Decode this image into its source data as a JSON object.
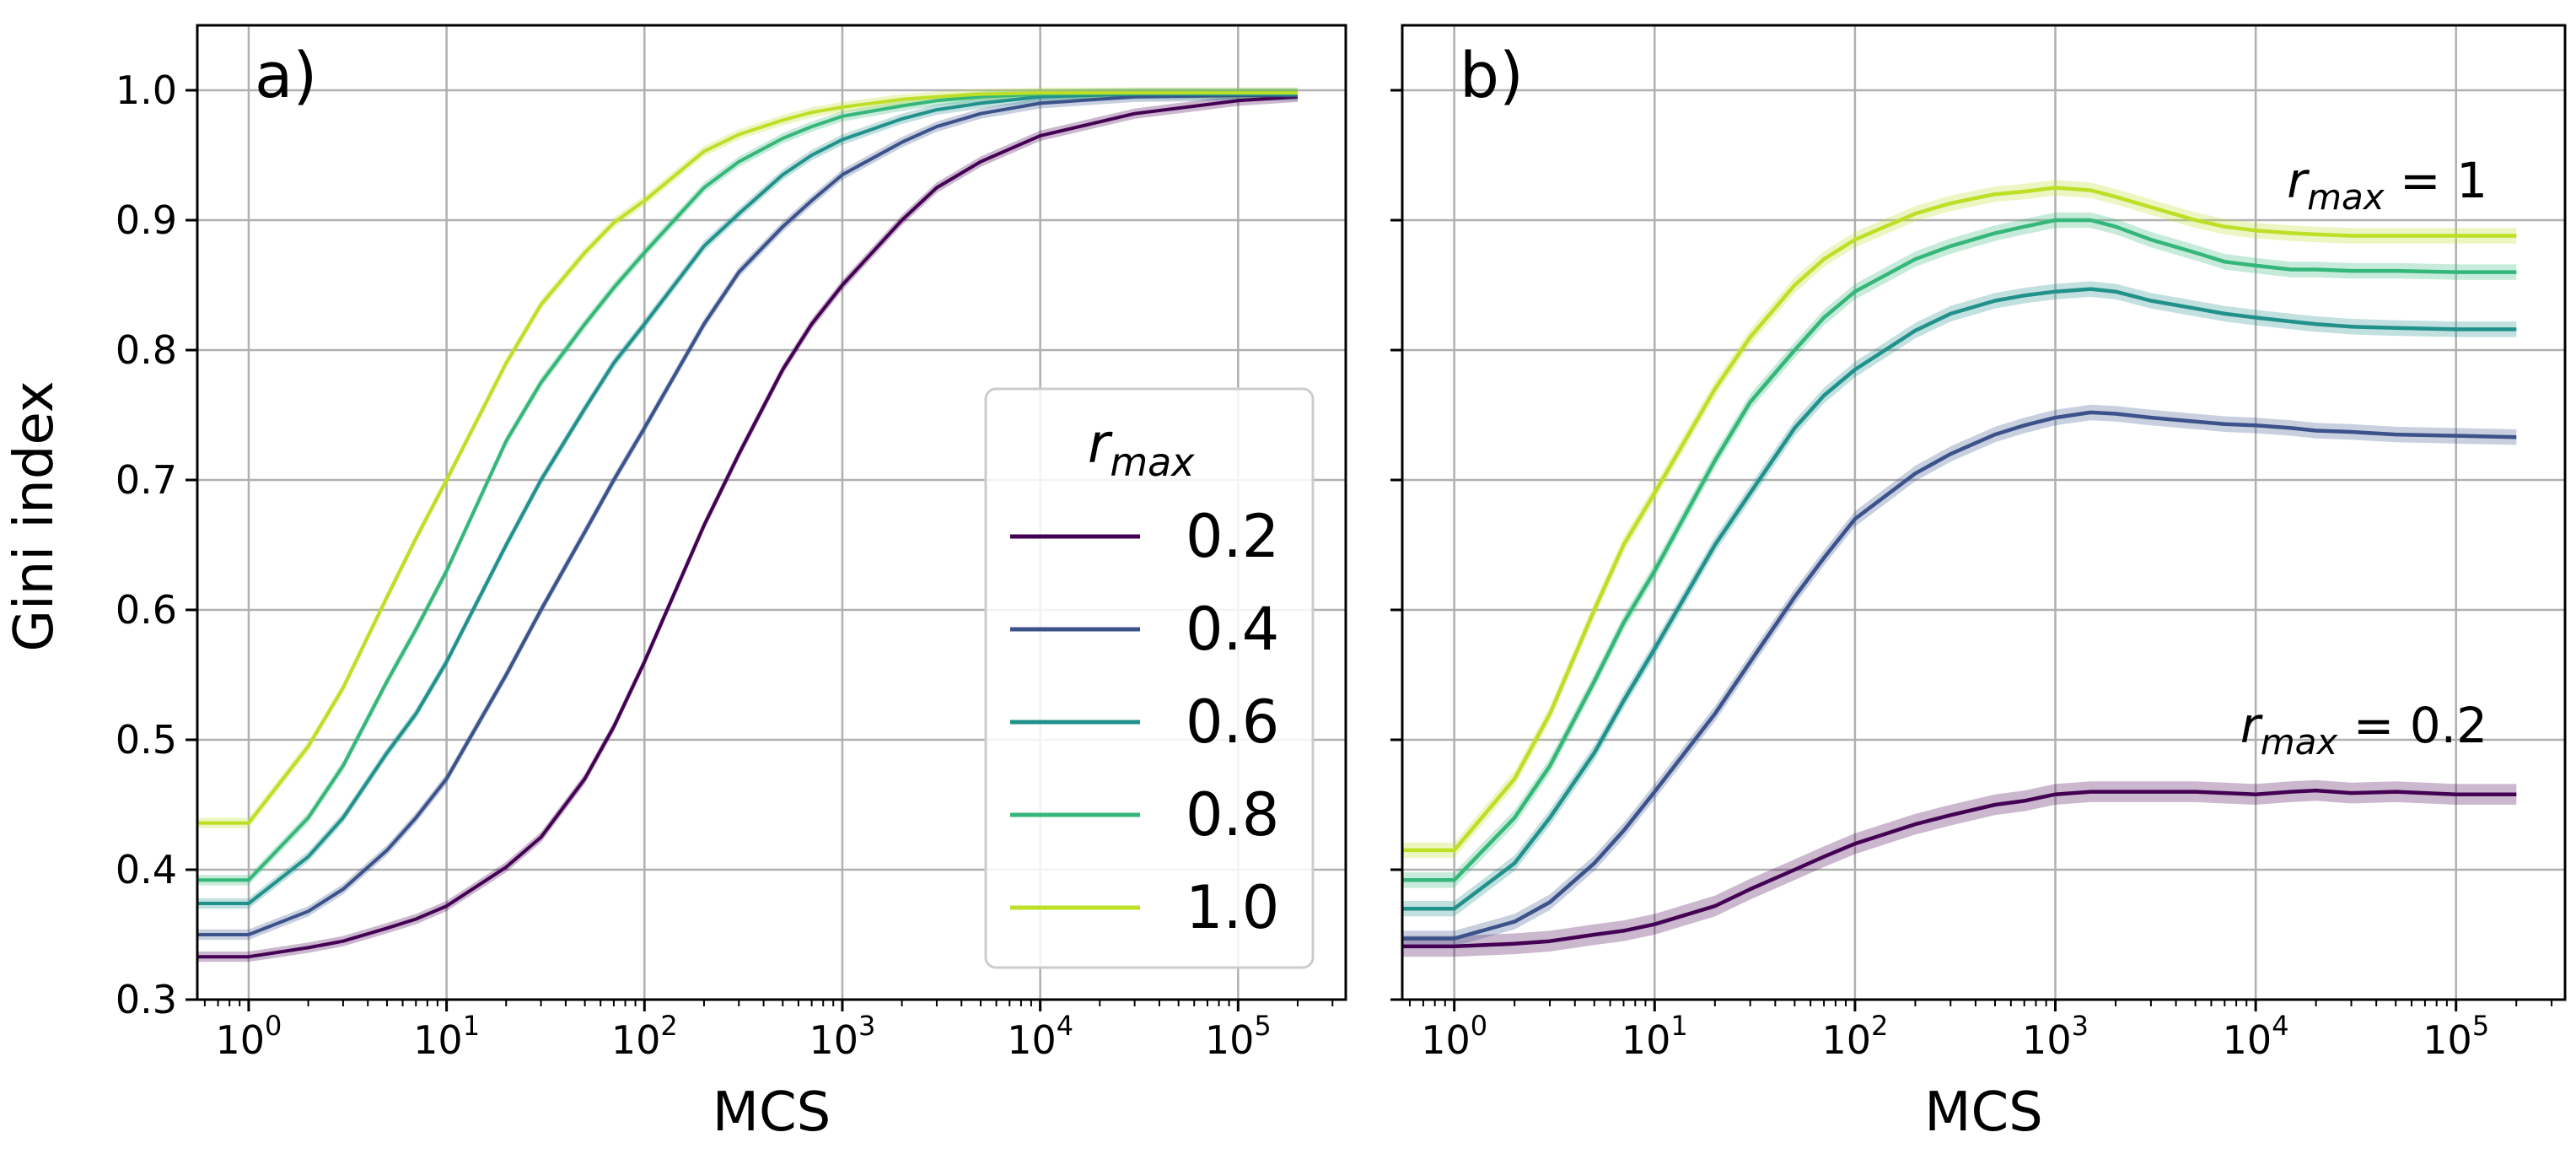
{
  "figure": {
    "shared_ylabel": "Gini index"
  },
  "legend": {
    "title_base": "r",
    "title_sub": "max",
    "entries": [
      "0.2",
      "0.4",
      "0.6",
      "0.8",
      "1.0"
    ]
  },
  "colors": {
    "0.2": "#440154",
    "0.4": "#3b528b",
    "0.6": "#21918c",
    "0.8": "#35b779",
    "1.0": "#bddf26",
    "grid": "#b0b0b0",
    "axes": "#000000"
  },
  "chart_data": [
    {
      "type": "line",
      "panel_label": "a)",
      "title": "",
      "xlabel": "MCS",
      "ylabel": "Gini index",
      "xscale": "log",
      "xlim": [
        0.55,
        350000
      ],
      "ylim": [
        0.3,
        1.05
      ],
      "grid": true,
      "legend_position": "lower-right",
      "x_ticks": [
        {
          "base": "10",
          "exp": "0"
        },
        {
          "base": "10",
          "exp": "1"
        },
        {
          "base": "10",
          "exp": "2"
        },
        {
          "base": "10",
          "exp": "3"
        },
        {
          "base": "10",
          "exp": "4"
        },
        {
          "base": "10",
          "exp": "5"
        }
      ],
      "y_ticks": [
        "0.3",
        "0.4",
        "0.5",
        "0.6",
        "0.7",
        "0.8",
        "0.9",
        "1.0"
      ],
      "x": [
        0.55,
        1,
        2,
        3,
        5,
        7,
        10,
        20,
        30,
        50,
        70,
        100,
        200,
        300,
        500,
        700,
        1000,
        2000,
        3000,
        5000,
        10000,
        30000,
        100000,
        200000
      ],
      "series": [
        {
          "name": "0.2",
          "values": [
            0.333,
            0.333,
            0.34,
            0.345,
            0.355,
            0.362,
            0.372,
            0.402,
            0.425,
            0.47,
            0.51,
            0.56,
            0.665,
            0.72,
            0.785,
            0.82,
            0.85,
            0.9,
            0.925,
            0.945,
            0.965,
            0.982,
            0.992,
            0.995
          ]
        },
        {
          "name": "0.4",
          "values": [
            0.35,
            0.35,
            0.368,
            0.385,
            0.415,
            0.44,
            0.47,
            0.55,
            0.6,
            0.66,
            0.7,
            0.74,
            0.82,
            0.86,
            0.895,
            0.915,
            0.935,
            0.96,
            0.972,
            0.982,
            0.99,
            0.995,
            0.996,
            0.996
          ]
        },
        {
          "name": "0.6",
          "values": [
            0.374,
            0.374,
            0.41,
            0.44,
            0.49,
            0.52,
            0.56,
            0.65,
            0.7,
            0.755,
            0.79,
            0.82,
            0.88,
            0.905,
            0.935,
            0.95,
            0.962,
            0.978,
            0.985,
            0.99,
            0.995,
            0.997,
            0.997,
            0.997
          ]
        },
        {
          "name": "0.8",
          "values": [
            0.392,
            0.392,
            0.44,
            0.48,
            0.545,
            0.585,
            0.63,
            0.73,
            0.775,
            0.82,
            0.848,
            0.875,
            0.925,
            0.945,
            0.963,
            0.972,
            0.98,
            0.988,
            0.992,
            0.995,
            0.997,
            0.998,
            0.998,
            0.998
          ]
        },
        {
          "name": "1.0",
          "values": [
            0.436,
            0.436,
            0.495,
            0.54,
            0.61,
            0.655,
            0.7,
            0.79,
            0.835,
            0.875,
            0.898,
            0.915,
            0.953,
            0.966,
            0.977,
            0.983,
            0.987,
            0.993,
            0.995,
            0.997,
            0.998,
            0.998,
            0.998,
            0.998
          ]
        }
      ],
      "annotations": []
    },
    {
      "type": "line",
      "panel_label": "b)",
      "title": "",
      "xlabel": "MCS",
      "ylabel": "",
      "xscale": "log",
      "xlim": [
        0.55,
        350000
      ],
      "ylim": [
        0.3,
        1.05
      ],
      "grid": true,
      "legend_position": "none",
      "x_ticks": [
        {
          "base": "10",
          "exp": "0"
        },
        {
          "base": "10",
          "exp": "1"
        },
        {
          "base": "10",
          "exp": "2"
        },
        {
          "base": "10",
          "exp": "3"
        },
        {
          "base": "10",
          "exp": "4"
        },
        {
          "base": "10",
          "exp": "5"
        }
      ],
      "y_ticks": [
        "0.3",
        "0.4",
        "0.5",
        "0.6",
        "0.7",
        "0.8",
        "0.9",
        "1.0"
      ],
      "x": [
        0.55,
        1,
        2,
        3,
        5,
        7,
        10,
        20,
        30,
        50,
        70,
        100,
        200,
        300,
        500,
        700,
        1000,
        1500,
        2000,
        3000,
        5000,
        7000,
        10000,
        15000,
        20000,
        30000,
        50000,
        100000,
        200000
      ],
      "series": [
        {
          "name": "0.2",
          "values": [
            0.341,
            0.341,
            0.343,
            0.345,
            0.35,
            0.353,
            0.358,
            0.372,
            0.385,
            0.4,
            0.41,
            0.42,
            0.435,
            0.442,
            0.45,
            0.453,
            0.458,
            0.46,
            0.46,
            0.46,
            0.46,
            0.459,
            0.458,
            0.46,
            0.461,
            0.459,
            0.46,
            0.458,
            0.458
          ]
        },
        {
          "name": "0.4",
          "values": [
            0.347,
            0.347,
            0.36,
            0.375,
            0.405,
            0.43,
            0.46,
            0.52,
            0.56,
            0.61,
            0.64,
            0.67,
            0.705,
            0.72,
            0.735,
            0.742,
            0.748,
            0.752,
            0.751,
            0.748,
            0.745,
            0.743,
            0.742,
            0.74,
            0.738,
            0.737,
            0.735,
            0.734,
            0.733
          ]
        },
        {
          "name": "0.6",
          "values": [
            0.37,
            0.37,
            0.405,
            0.44,
            0.49,
            0.53,
            0.57,
            0.65,
            0.69,
            0.74,
            0.765,
            0.785,
            0.815,
            0.828,
            0.838,
            0.842,
            0.845,
            0.847,
            0.845,
            0.838,
            0.832,
            0.828,
            0.825,
            0.822,
            0.82,
            0.818,
            0.817,
            0.816,
            0.816
          ]
        },
        {
          "name": "0.8",
          "values": [
            0.392,
            0.392,
            0.44,
            0.48,
            0.545,
            0.59,
            0.63,
            0.715,
            0.76,
            0.8,
            0.825,
            0.845,
            0.87,
            0.88,
            0.89,
            0.895,
            0.9,
            0.9,
            0.895,
            0.885,
            0.875,
            0.868,
            0.865,
            0.862,
            0.862,
            0.861,
            0.861,
            0.86,
            0.86
          ]
        },
        {
          "name": "1.0",
          "values": [
            0.415,
            0.415,
            0.47,
            0.52,
            0.6,
            0.65,
            0.69,
            0.77,
            0.81,
            0.85,
            0.87,
            0.885,
            0.905,
            0.913,
            0.92,
            0.922,
            0.925,
            0.923,
            0.918,
            0.91,
            0.9,
            0.895,
            0.892,
            0.89,
            0.889,
            0.888,
            0.888,
            0.888,
            0.888
          ]
        }
      ],
      "annotations": [
        {
          "base": "r",
          "sub": "max",
          "rest": " = 1",
          "near_series": "1.0"
        },
        {
          "base": "r",
          "sub": "max",
          "rest": " = 0.2",
          "near_series": "0.2"
        }
      ]
    }
  ]
}
